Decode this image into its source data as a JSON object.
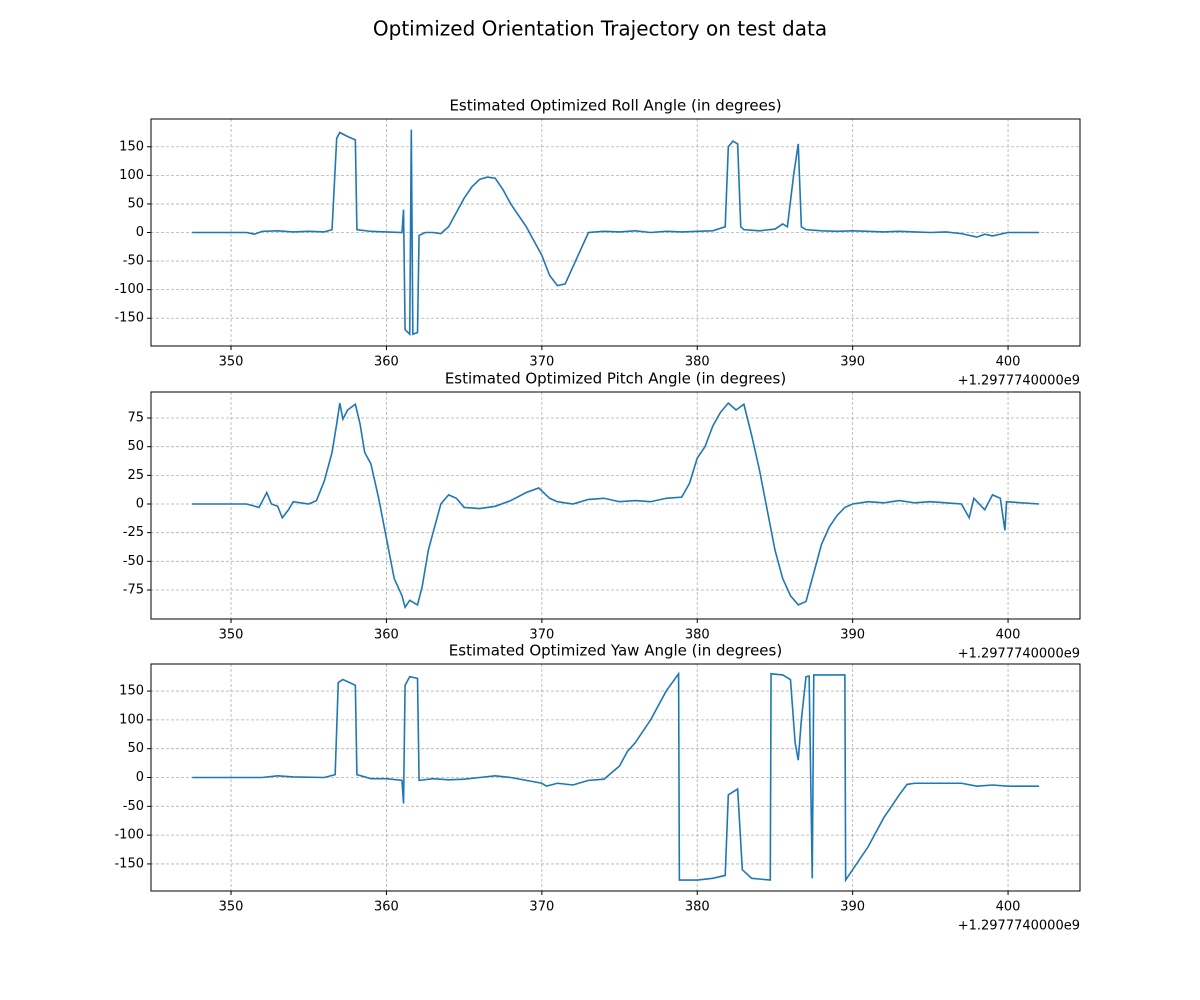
{
  "title": "Optimized Orientation Trajectory on test data",
  "chart_data": [
    {
      "type": "line",
      "title": "Estimated Optimized Roll Angle (in degrees)",
      "color": "#1f77b4",
      "grid": true,
      "offset_label": "+1.2977740000e9",
      "xlim": [
        344.85,
        404.63
      ],
      "xticks": [
        350,
        360,
        370,
        380,
        390,
        400
      ],
      "ylim": [
        -198.6,
        198.6
      ],
      "yticks": [
        -150,
        -100,
        -50,
        0,
        50,
        100,
        150
      ],
      "x": [
        347.5,
        351,
        351.5,
        352,
        353,
        354,
        355,
        356,
        356.5,
        356.8,
        357,
        357.5,
        358,
        358.1,
        359,
        360,
        361,
        361.1,
        361.2,
        361.5,
        361.6,
        361.7,
        362,
        362.1,
        362.5,
        363,
        363.5,
        364,
        364.5,
        365,
        365.5,
        366,
        366.5,
        367,
        367.5,
        368,
        369,
        370,
        370.5,
        371,
        371.5,
        372,
        372.5,
        373,
        374,
        375,
        376,
        377,
        378,
        379,
        380,
        381,
        381.8,
        382,
        382.3,
        382.6,
        382.8,
        383,
        384,
        385,
        385.5,
        385.8,
        386.2,
        386.5,
        386.7,
        387,
        388,
        389,
        390,
        391,
        392,
        393,
        394,
        395,
        396,
        397,
        397.5,
        398,
        398.5,
        399,
        400,
        402
      ],
      "values": [
        0,
        0,
        -3,
        2,
        3,
        1,
        2,
        1,
        5,
        165,
        175,
        168,
        162,
        5,
        2,
        1,
        0,
        40,
        -170,
        -178,
        180,
        -178,
        -175,
        -5,
        0,
        0,
        -2,
        10,
        35,
        60,
        80,
        93,
        97,
        95,
        75,
        50,
        10,
        -40,
        -75,
        -93,
        -90,
        -60,
        -30,
        0,
        2,
        1,
        3,
        0,
        2,
        1,
        2,
        3,
        10,
        150,
        160,
        155,
        10,
        5,
        3,
        6,
        15,
        10,
        100,
        155,
        10,
        5,
        3,
        2,
        3,
        2,
        1,
        2,
        1,
        0,
        1,
        -2,
        -5,
        -8,
        -3,
        -6,
        0,
        0
      ]
    },
    {
      "type": "line",
      "title": "Estimated Optimized Pitch Angle (in degrees)",
      "color": "#1f77b4",
      "grid": true,
      "offset_label": "+1.2977740000e9",
      "xlim": [
        344.85,
        404.63
      ],
      "xticks": [
        350,
        360,
        370,
        380,
        390,
        400
      ],
      "ylim": [
        -100.3,
        97.7
      ],
      "yticks": [
        -75,
        -50,
        -25,
        0,
        25,
        50,
        75
      ],
      "x": [
        347.5,
        351,
        351.8,
        352.3,
        352.6,
        353,
        353.3,
        353.7,
        354,
        355,
        355.5,
        356,
        356.5,
        356.8,
        357,
        357.2,
        357.5,
        358,
        358.3,
        358.6,
        359,
        359.5,
        360,
        360.5,
        361,
        361.2,
        361.5,
        362,
        362.3,
        362.7,
        363,
        363.5,
        364,
        364.5,
        365,
        366,
        367,
        368,
        369,
        369.8,
        370.5,
        371,
        372,
        373,
        374,
        375,
        376,
        377,
        378,
        379,
        379.5,
        380,
        380.5,
        381,
        381.5,
        382,
        382.5,
        383,
        383.5,
        384,
        384.5,
        385,
        385.5,
        386,
        386.5,
        387,
        387.5,
        388,
        388.5,
        389,
        389.5,
        390,
        391,
        392,
        393,
        394,
        395,
        396,
        397,
        397.5,
        397.8,
        398.5,
        399,
        399.5,
        399.8,
        399.9,
        402
      ],
      "values": [
        0,
        0,
        -3,
        10,
        0,
        -2,
        -12,
        -5,
        2,
        0,
        3,
        20,
        45,
        70,
        88,
        74,
        82,
        87,
        70,
        45,
        35,
        5,
        -30,
        -65,
        -80,
        -90,
        -84,
        -88,
        -72,
        -40,
        -25,
        0,
        8,
        5,
        -3,
        -4,
        -2,
        3,
        10,
        14,
        5,
        2,
        0,
        4,
        5,
        2,
        3,
        2,
        5,
        6,
        18,
        40,
        50,
        68,
        80,
        88,
        82,
        87,
        60,
        30,
        -5,
        -40,
        -65,
        -80,
        -88,
        -85,
        -60,
        -35,
        -20,
        -10,
        -3,
        0,
        2,
        1,
        3,
        1,
        2,
        1,
        0,
        -12,
        5,
        -5,
        8,
        5,
        -23,
        2,
        0
      ]
    },
    {
      "type": "line",
      "title": "Estimated Optimized Yaw Angle (in degrees)",
      "color": "#1f77b4",
      "grid": true,
      "offset_label": "+1.2977740000e9",
      "xlim": [
        344.85,
        404.63
      ],
      "xticks": [
        350,
        360,
        370,
        380,
        390,
        400
      ],
      "ylim": [
        -197,
        197
      ],
      "yticks": [
        -150,
        -100,
        -50,
        0,
        50,
        100,
        150
      ],
      "x": [
        347.5,
        352,
        353,
        354,
        356,
        356.7,
        356.9,
        357.2,
        358,
        358.1,
        359,
        360,
        361,
        361.1,
        361.2,
        361.5,
        362,
        362.1,
        363,
        364,
        365,
        366,
        367,
        368,
        369,
        370,
        370.3,
        371,
        372,
        373,
        374,
        375,
        375.5,
        376,
        377,
        378,
        378.8,
        378.85,
        380,
        381,
        381.8,
        382,
        382.3,
        382.6,
        382.9,
        383.5,
        384.7,
        384.75,
        385.5,
        386,
        386.3,
        386.5,
        386.7,
        387,
        387.2,
        387.4,
        387.5,
        389.5,
        389.55,
        390,
        391,
        392,
        393,
        393.5,
        394,
        396,
        397,
        398,
        399,
        400,
        402
      ],
      "values": [
        0,
        0,
        3,
        1,
        0,
        5,
        165,
        170,
        160,
        5,
        -2,
        -2,
        -5,
        -45,
        160,
        175,
        172,
        -5,
        -2,
        -4,
        -3,
        0,
        3,
        0,
        -5,
        -10,
        -15,
        -10,
        -13,
        -5,
        -3,
        20,
        45,
        60,
        100,
        150,
        180,
        -178,
        -178,
        -175,
        -170,
        -30,
        -25,
        -20,
        -160,
        -175,
        -178,
        180,
        178,
        170,
        60,
        30,
        100,
        175,
        176,
        -175,
        178,
        178,
        -178,
        -160,
        -120,
        -70,
        -30,
        -12,
        -10,
        -10,
        -10,
        -15,
        -13,
        -15,
        -15
      ]
    }
  ]
}
